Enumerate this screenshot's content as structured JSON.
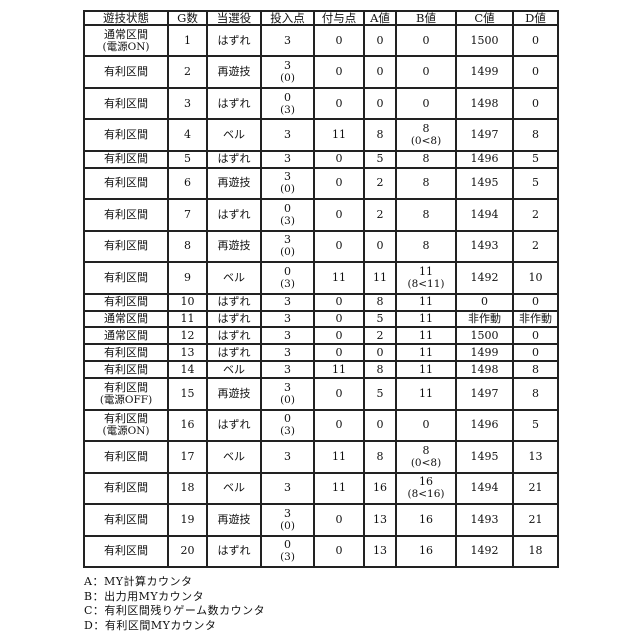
{
  "headers": [
    "遊技状態",
    "G数",
    "当選役",
    "投入点",
    "付与点",
    "A値",
    "B値",
    "C値",
    "D値"
  ],
  "rows": [
    {
      "state": "通常区間",
      "state_note": "(電源ON)",
      "g": "1",
      "role": "はずれ",
      "bet": "3",
      "bet_note": "",
      "pay": "0",
      "a": "0",
      "b": "0",
      "b_note": "",
      "c": "1500",
      "d": "0"
    },
    {
      "state": "有利区間",
      "state_note": "",
      "g": "2",
      "role": "再遊技",
      "bet": "3",
      "bet_note": "(0)",
      "pay": "0",
      "a": "0",
      "b": "0",
      "b_note": "",
      "c": "1499",
      "d": "0"
    },
    {
      "state": "有利区間",
      "state_note": "",
      "g": "3",
      "role": "はずれ",
      "bet": "0",
      "bet_note": "(3)",
      "pay": "0",
      "a": "0",
      "b": "0",
      "b_note": "",
      "c": "1498",
      "d": "0"
    },
    {
      "state": "有利区間",
      "state_note": "",
      "g": "4",
      "role": "ベル",
      "bet": "3",
      "bet_note": "",
      "pay": "11",
      "a": "8",
      "b": "8",
      "b_note": "(0<8)",
      "c": "1497",
      "d": "8"
    },
    {
      "state": "有利区間",
      "state_note": "",
      "g": "5",
      "role": "はずれ",
      "bet": "3",
      "bet_note": "",
      "pay": "0",
      "a": "5",
      "b": "8",
      "b_note": "",
      "c": "1496",
      "d": "5"
    },
    {
      "state": "有利区間",
      "state_note": "",
      "g": "6",
      "role": "再遊技",
      "bet": "3",
      "bet_note": "(0)",
      "pay": "0",
      "a": "2",
      "b": "8",
      "b_note": "",
      "c": "1495",
      "d": "5"
    },
    {
      "state": "有利区間",
      "state_note": "",
      "g": "7",
      "role": "はずれ",
      "bet": "0",
      "bet_note": "(3)",
      "pay": "0",
      "a": "2",
      "b": "8",
      "b_note": "",
      "c": "1494",
      "d": "2"
    },
    {
      "state": "有利区間",
      "state_note": "",
      "g": "8",
      "role": "再遊技",
      "bet": "3",
      "bet_note": "(0)",
      "pay": "0",
      "a": "0",
      "b": "8",
      "b_note": "",
      "c": "1493",
      "d": "2"
    },
    {
      "state": "有利区間",
      "state_note": "",
      "g": "9",
      "role": "ベル",
      "bet": "0",
      "bet_note": "(3)",
      "pay": "11",
      "a": "11",
      "b": "11",
      "b_note": "(8<11)",
      "c": "1492",
      "d": "10"
    },
    {
      "state": "有利区間",
      "state_note": "",
      "g": "10",
      "role": "はずれ",
      "bet": "3",
      "bet_note": "",
      "pay": "0",
      "a": "8",
      "b": "11",
      "b_note": "",
      "c": "0",
      "d": "0"
    },
    {
      "state": "通常区間",
      "state_note": "",
      "g": "11",
      "role": "はずれ",
      "bet": "3",
      "bet_note": "",
      "pay": "0",
      "a": "5",
      "b": "11",
      "b_note": "",
      "c": "非作動",
      "d": "非作動"
    },
    {
      "state": "通常区間",
      "state_note": "",
      "g": "12",
      "role": "はずれ",
      "bet": "3",
      "bet_note": "",
      "pay": "0",
      "a": "2",
      "b": "11",
      "b_note": "",
      "c": "1500",
      "d": "0"
    },
    {
      "state": "有利区間",
      "state_note": "",
      "g": "13",
      "role": "はずれ",
      "bet": "3",
      "bet_note": "",
      "pay": "0",
      "a": "0",
      "b": "11",
      "b_note": "",
      "c": "1499",
      "d": "0"
    },
    {
      "state": "有利区間",
      "state_note": "",
      "g": "14",
      "role": "ベル",
      "bet": "3",
      "bet_note": "",
      "pay": "11",
      "a": "8",
      "b": "11",
      "b_note": "",
      "c": "1498",
      "d": "8"
    },
    {
      "state": "有利区間",
      "state_note": "(電源OFF)",
      "g": "15",
      "role": "再遊技",
      "bet": "3",
      "bet_note": "(0)",
      "pay": "0",
      "a": "5",
      "b": "11",
      "b_note": "",
      "c": "1497",
      "d": "8"
    },
    {
      "state": "有利区間",
      "state_note": "(電源ON)",
      "g": "16",
      "role": "はずれ",
      "bet": "0",
      "bet_note": "(3)",
      "pay": "0",
      "a": "0",
      "b": "0",
      "b_note": "",
      "c": "1496",
      "d": "5"
    },
    {
      "state": "有利区間",
      "state_note": "",
      "g": "17",
      "role": "ベル",
      "bet": "3",
      "bet_note": "",
      "pay": "11",
      "a": "8",
      "b": "8",
      "b_note": "(0<8)",
      "c": "1495",
      "d": "13"
    },
    {
      "state": "有利区間",
      "state_note": "",
      "g": "18",
      "role": "ベル",
      "bet": "3",
      "bet_note": "",
      "pay": "11",
      "a": "16",
      "b": "16",
      "b_note": "(8<16)",
      "c": "1494",
      "d": "21"
    },
    {
      "state": "有利区間",
      "state_note": "",
      "g": "19",
      "role": "再遊技",
      "bet": "3",
      "bet_note": "(0)",
      "pay": "0",
      "a": "13",
      "b": "16",
      "b_note": "",
      "c": "1493",
      "d": "21"
    },
    {
      "state": "有利区間",
      "state_note": "",
      "g": "20",
      "role": "はずれ",
      "bet": "0",
      "bet_note": "(3)",
      "pay": "0",
      "a": "13",
      "b": "16",
      "b_note": "",
      "c": "1492",
      "d": "18"
    }
  ],
  "legend": [
    "A：MY計算カウンタ",
    "B：出力用MYカウンタ",
    "C：有利区間残りゲーム数カウンタ",
    "D：有利区間MYカウンタ"
  ]
}
